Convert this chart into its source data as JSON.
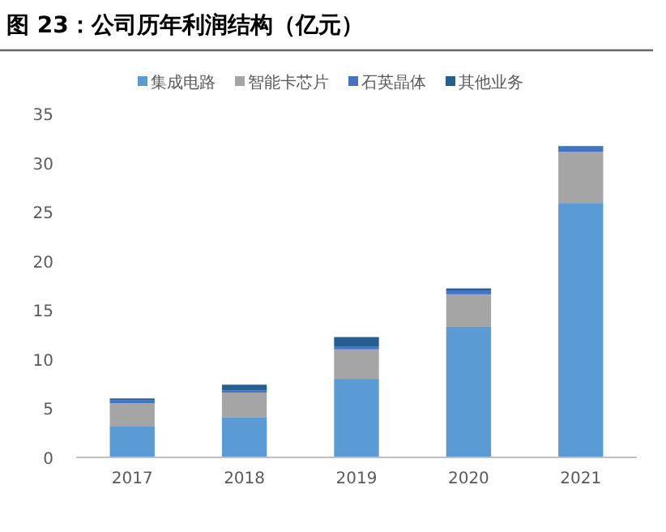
{
  "chart_data": {
    "type": "bar",
    "title": "图 23：公司历年利润结构（亿元）",
    "categories": [
      "2017",
      "2018",
      "2019",
      "2020",
      "2021"
    ],
    "stacked": true,
    "ylim": [
      0,
      35
    ],
    "yticks": [
      0,
      5,
      10,
      15,
      20,
      25,
      30,
      35
    ],
    "grid": false,
    "legend": "top",
    "series": [
      {
        "name": "集成电路",
        "color": "#5b9bd5",
        "values": [
          3.2,
          4.1,
          8.0,
          13.3,
          25.9
        ]
      },
      {
        "name": "智能卡芯片",
        "color": "#a5a5a5",
        "values": [
          2.3,
          2.5,
          3.0,
          3.3,
          5.2
        ]
      },
      {
        "name": "石英晶体",
        "color": "#4472c4",
        "values": [
          0.35,
          0.2,
          0.3,
          0.4,
          0.55
        ]
      },
      {
        "name": "其他业务",
        "color": "#255e91",
        "values": [
          0.15,
          0.6,
          0.95,
          0.2,
          0.05
        ]
      }
    ]
  }
}
